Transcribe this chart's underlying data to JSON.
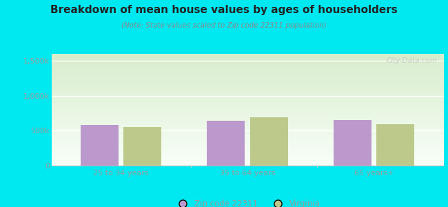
{
  "title": "Breakdown of mean house values by ages of householders",
  "subtitle": "(Note: State values scaled to Zip code 22311 population)",
  "categories": [
    "25 to 34 years",
    "35 to 64 years",
    "65 years+"
  ],
  "zip_values": [
    580000,
    640000,
    650000
  ],
  "va_values": [
    555000,
    690000,
    590000
  ],
  "ylim": [
    0,
    1600000
  ],
  "yticks": [
    0,
    500000,
    1000000,
    1500000
  ],
  "ytick_labels": [
    "0",
    "500k",
    "1,000k",
    "1,500k"
  ],
  "zip_color": "#bb99cc",
  "va_color": "#bdc98a",
  "background_outer": "#00e8f0",
  "bg_top_color": "#d8edcc",
  "bg_bottom_color": "#f8fff8",
  "title_color": "#222222",
  "subtitle_color": "#888888",
  "tick_color": "#999999",
  "grid_color": "#e8e8e8",
  "watermark": "City-Data.com",
  "legend_zip_label": "Zip code 22311",
  "legend_va_label": "Virginia",
  "bar_width": 0.3
}
